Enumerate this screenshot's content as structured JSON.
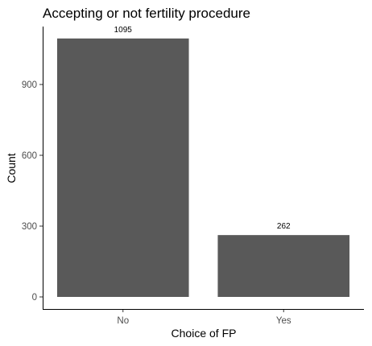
{
  "chart_data": {
    "type": "bar",
    "title": "Accepting or not fertility procedure",
    "xlabel": "Choice of FP",
    "ylabel": "Count",
    "categories": [
      "No",
      "Yes"
    ],
    "values": [
      1095,
      262
    ],
    "data_labels": [
      "1095",
      "262"
    ],
    "ylim": [
      0,
      1150
    ],
    "yticks": [
      0,
      300,
      600,
      900
    ],
    "ytick_labels": [
      "0",
      "300",
      "600",
      "900"
    ],
    "bar_color": "#595959",
    "grid": false,
    "legend": "none"
  }
}
